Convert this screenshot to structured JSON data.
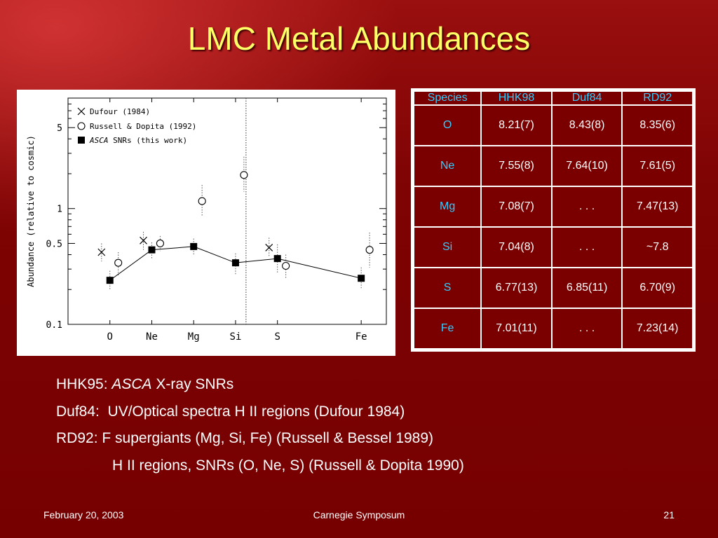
{
  "slide": {
    "title": "LMC Metal Abundances",
    "footer": {
      "date": "February 20, 2003",
      "event": "Carnegie Symposum",
      "page": "21"
    }
  },
  "colors": {
    "title": "#ffff66",
    "background": "#7a0000",
    "table_header": "#33ccff",
    "text": "#ffffff"
  },
  "table": {
    "headers": [
      "Species",
      "HHK98",
      "Duf84",
      "RD92"
    ],
    "rows": [
      [
        "O",
        "8.21(7)",
        "8.43(8)",
        "8.35(6)"
      ],
      [
        "Ne",
        "7.55(8)",
        "7.64(10)",
        "7.61(5)"
      ],
      [
        "Mg",
        "7.08(7)",
        ". . .",
        "7.47(13)"
      ],
      [
        "Si",
        "7.04(8)",
        ". . .",
        "~7.8"
      ],
      [
        "S",
        "6.77(13)",
        "6.85(11)",
        "6.70(9)"
      ],
      [
        "Fe",
        "7.01(11)",
        ". . .",
        "7.23(14)"
      ]
    ]
  },
  "notes": {
    "line1_prefix": "HHK95: ",
    "line1_italic": "ASCA",
    "line1_suffix": " X-ray SNRs",
    "line2": "Duf84:  UV/Optical spectra H II regions (Dufour 1984)",
    "line3": "RD92: F supergiants (Mg, Si, Fe) (Russell & Bessel 1989)",
    "line4": "H II regions, SNRs (O, Ne, S) (Russell & Dopita 1990)"
  },
  "chart_data": {
    "type": "scatter",
    "scale": "log",
    "ylabel": "Abundance (relative to cosmic)",
    "xlabel": "",
    "ylim": [
      0.1,
      9
    ],
    "yticks": [
      {
        "value": 0.1,
        "label": "0.1"
      },
      {
        "value": 0.5,
        "label": "0.5"
      },
      {
        "value": 1,
        "label": "1"
      },
      {
        "value": 5,
        "label": "5"
      }
    ],
    "categories": [
      "O",
      "Ne",
      "Mg",
      "Si",
      "S",
      "Fe"
    ],
    "x_positions": [
      1,
      2,
      3,
      4,
      5,
      7
    ],
    "xlim": [
      0,
      7.6
    ],
    "divider_x": 4.25,
    "grid": false,
    "legend": {
      "placement": "top-left",
      "entries": [
        {
          "marker": "x",
          "label": "Dufour (1984)"
        },
        {
          "marker": "circle",
          "label": "Russell & Dopita (1992)"
        },
        {
          "marker": "square",
          "label_italic": "ASCA",
          "label": "SNRs (this work)"
        }
      ]
    },
    "series": [
      {
        "name": "Dufour (1984)",
        "marker": "x",
        "points": [
          {
            "x": 0.8,
            "y": 0.42,
            "lo": 0.35,
            "hi": 0.5
          },
          {
            "x": 1.8,
            "y": 0.53,
            "lo": 0.44,
            "hi": 0.63
          },
          {
            "x": 4.8,
            "y": 0.46,
            "lo": 0.38,
            "hi": 0.56
          }
        ]
      },
      {
        "name": "Russell & Dopita (1992)",
        "marker": "circle",
        "points": [
          {
            "x": 1.2,
            "y": 0.34,
            "lo": 0.26,
            "hi": 0.42
          },
          {
            "x": 2.2,
            "y": 0.5,
            "lo": 0.43,
            "hi": 0.58
          },
          {
            "x": 3.2,
            "y": 1.16,
            "lo": 0.85,
            "hi": 1.6
          },
          {
            "x": 3.2,
            "y": 1.95,
            "lo": 1.4,
            "hi": 2.8,
            "x_override": 4.2
          },
          {
            "x": 5.2,
            "y": 0.32,
            "lo": 0.25,
            "hi": 0.4
          },
          {
            "x": 7.2,
            "y": 0.44,
            "lo": 0.31,
            "hi": 0.62
          }
        ]
      },
      {
        "name": "ASCA SNRs (this work)",
        "marker": "square",
        "connected": true,
        "points": [
          {
            "x": 1,
            "y": 0.24,
            "lo": 0.2,
            "hi": 0.29
          },
          {
            "x": 2,
            "y": 0.44,
            "lo": 0.37,
            "hi": 0.51
          },
          {
            "x": 3,
            "y": 0.47,
            "lo": 0.4,
            "hi": 0.55
          },
          {
            "x": 4,
            "y": 0.34,
            "lo": 0.27,
            "hi": 0.41
          },
          {
            "x": 5,
            "y": 0.37,
            "lo": 0.28,
            "hi": 0.49
          },
          {
            "x": 7,
            "y": 0.25,
            "lo": 0.2,
            "hi": 0.31
          }
        ]
      }
    ]
  }
}
